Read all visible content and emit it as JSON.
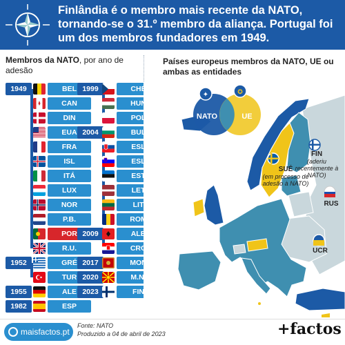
{
  "header": {
    "headline": "Finlândia é o membro mais recente da NATO, tornando-se o 31.º membro da aliança. Portugal foi um dos membros fundadores em 1949.",
    "emblem_icon": "nato-compass-star-icon"
  },
  "left_panel": {
    "heading_bold": "Membros da NATO",
    "heading_rest": ", por ano de adesão"
  },
  "timeline": {
    "col1": [
      {
        "year": "1949",
        "members": [
          {
            "code": "BEL",
            "flag": "belgium"
          },
          {
            "code": "CAN",
            "flag": "canada"
          },
          {
            "code": "DIN",
            "flag": "denmark"
          },
          {
            "code": "EUA",
            "flag": "usa"
          },
          {
            "code": "FRA",
            "flag": "france"
          },
          {
            "code": "ISL",
            "flag": "iceland"
          },
          {
            "code": "ITÁ",
            "flag": "italy"
          },
          {
            "code": "LUX",
            "flag": "luxembourg"
          },
          {
            "code": "NOR",
            "flag": "norway"
          },
          {
            "code": "P.B.",
            "flag": "netherlands"
          },
          {
            "code": "POR",
            "flag": "portugal"
          },
          {
            "code": "R.U.",
            "flag": "uk"
          }
        ]
      },
      {
        "year": "1952",
        "members": [
          {
            "code": "GRÉ",
            "flag": "greece"
          },
          {
            "code": "TUR",
            "flag": "turkey"
          }
        ]
      },
      {
        "year": "1955",
        "members": [
          {
            "code": "ALE",
            "flag": "germany"
          }
        ]
      },
      {
        "year": "1982",
        "members": [
          {
            "code": "ESP",
            "flag": "spain"
          }
        ]
      }
    ],
    "col2": [
      {
        "year": "1999",
        "members": [
          {
            "code": "CHÉ",
            "flag": "czechia"
          },
          {
            "code": "HUN",
            "flag": "hungary"
          },
          {
            "code": "POL",
            "flag": "poland"
          }
        ]
      },
      {
        "year": "2004",
        "members": [
          {
            "code": "BUL",
            "flag": "bulgaria"
          },
          {
            "code": "ESL",
            "flag": "slovakia"
          },
          {
            "code": "ESL",
            "flag": "slovenia"
          },
          {
            "code": "EST",
            "flag": "estonia"
          },
          {
            "code": "LET",
            "flag": "latvia"
          },
          {
            "code": "LIT",
            "flag": "lithuania"
          },
          {
            "code": "ROM",
            "flag": "romania"
          }
        ]
      },
      {
        "year": "2009",
        "members": [
          {
            "code": "ALB",
            "flag": "albania"
          },
          {
            "code": "CRO",
            "flag": "croatia"
          }
        ]
      },
      {
        "year": "2017",
        "members": [
          {
            "code": "MON",
            "flag": "montenegro"
          }
        ]
      },
      {
        "year": "2020",
        "members": [
          {
            "code": "M.N.",
            "flag": "north-macedonia"
          }
        ]
      },
      {
        "year": "2023",
        "members": [
          {
            "code": "FIN",
            "flag": "finland"
          }
        ]
      }
    ]
  },
  "right_panel": {
    "heading": "Países europeus membros da NATO, UE ou ambas as entidades",
    "venn": {
      "left": "NATO",
      "right": "UE"
    },
    "colors": {
      "nato": "#1c5aa6",
      "eu": "#f0c419",
      "both": "#3f8fb0",
      "other": "#c9d7dc"
    },
    "labels": {
      "sue_name": "SUÉ",
      "sue_note": "(em processo de adesão à NATO)",
      "fin_name": "FIN",
      "fin_note": "(aderiu recentemente à NATO)",
      "rus": "RUS",
      "ucr": "UCR"
    }
  },
  "footer": {
    "site": "maisfactos.pt",
    "source": "Fonte: NATO",
    "date": "Produzido a 04 de abril de 2023",
    "brand": "+factos"
  }
}
